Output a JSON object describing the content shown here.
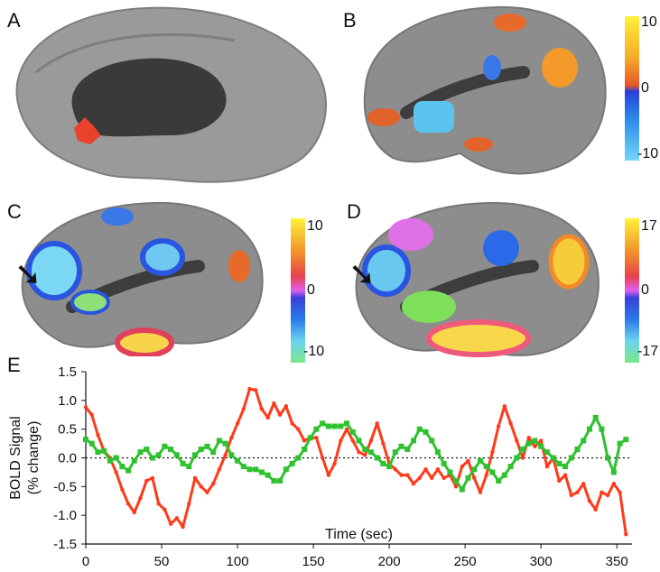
{
  "panels": {
    "a": {
      "label": "A"
    },
    "b": {
      "label": "B",
      "cbar": {
        "max": "10",
        "mid": "0",
        "min": "-10"
      }
    },
    "c": {
      "label": "C",
      "cbar": {
        "max": "10",
        "mid": "0",
        "min": "-10"
      }
    },
    "d": {
      "label": "D",
      "cbar": {
        "max": "17",
        "mid": "0",
        "min": "-17"
      }
    },
    "e": {
      "label": "E"
    }
  },
  "colors": {
    "brain": "#8f8f8f",
    "brain_dark": "#6e6e6e",
    "medial_wall": "#3a3a3a",
    "red_series": "#ff3a1a",
    "green_series": "#2ec22e"
  },
  "chart_data": {
    "type": "line",
    "ylabel": "BOLD Signal\n(% change)",
    "xlabel": "Time (sec)",
    "xlim": [
      0,
      360
    ],
    "ylim": [
      -1.5,
      1.5
    ],
    "xticks": [
      0,
      50,
      100,
      150,
      200,
      250,
      300,
      350
    ],
    "yticks": [
      1.5,
      1.0,
      0.5,
      0.0,
      -0.5,
      -1.0,
      -1.5
    ],
    "ytick_labels": [
      "1.5",
      "1.0",
      "0.5",
      "0.0",
      "-0.5",
      "-1.0",
      "-1.5"
    ],
    "reference_line": 0.0,
    "series": [
      {
        "color": "red",
        "points": [
          [
            0,
            0.88
          ],
          [
            4,
            0.75
          ],
          [
            8,
            0.4
          ],
          [
            12,
            0.12
          ],
          [
            16,
            0.0
          ],
          [
            20,
            -0.25
          ],
          [
            24,
            -0.55
          ],
          [
            28,
            -0.8
          ],
          [
            32,
            -0.95
          ],
          [
            36,
            -0.7
          ],
          [
            40,
            -0.4
          ],
          [
            44,
            -0.35
          ],
          [
            48,
            -0.8
          ],
          [
            52,
            -0.9
          ],
          [
            56,
            -1.15
          ],
          [
            60,
            -1.05
          ],
          [
            64,
            -1.2
          ],
          [
            68,
            -0.8
          ],
          [
            72,
            -0.35
          ],
          [
            76,
            -0.5
          ],
          [
            80,
            -0.6
          ],
          [
            84,
            -0.45
          ],
          [
            88,
            -0.2
          ],
          [
            92,
            0.05
          ],
          [
            96,
            0.35
          ],
          [
            100,
            0.6
          ],
          [
            104,
            0.85
          ],
          [
            108,
            1.2
          ],
          [
            112,
            1.18
          ],
          [
            116,
            0.85
          ],
          [
            120,
            0.7
          ],
          [
            124,
            0.95
          ],
          [
            128,
            0.75
          ],
          [
            132,
            0.9
          ],
          [
            136,
            0.6
          ],
          [
            140,
            0.5
          ],
          [
            144,
            0.3
          ],
          [
            148,
            0.35
          ],
          [
            152,
            0.35
          ],
          [
            156,
            0.0
          ],
          [
            160,
            -0.3
          ],
          [
            164,
            -0.1
          ],
          [
            168,
            0.3
          ],
          [
            172,
            0.5
          ],
          [
            176,
            0.3
          ],
          [
            180,
            0.1
          ],
          [
            184,
            0.05
          ],
          [
            188,
            0.3
          ],
          [
            192,
            0.6
          ],
          [
            196,
            0.25
          ],
          [
            200,
            -0.1
          ],
          [
            204,
            -0.2
          ],
          [
            208,
            -0.3
          ],
          [
            212,
            -0.3
          ],
          [
            216,
            -0.45
          ],
          [
            220,
            -0.35
          ],
          [
            224,
            -0.2
          ],
          [
            228,
            -0.35
          ],
          [
            232,
            -0.2
          ],
          [
            236,
            -0.35
          ],
          [
            240,
            -0.3
          ],
          [
            244,
            -0.5
          ],
          [
            248,
            -0.15
          ],
          [
            252,
            -0.05
          ],
          [
            256,
            -0.35
          ],
          [
            260,
            -0.6
          ],
          [
            264,
            -0.3
          ],
          [
            268,
            0.1
          ],
          [
            272,
            0.55
          ],
          [
            276,
            0.9
          ],
          [
            280,
            0.6
          ],
          [
            284,
            0.3
          ],
          [
            288,
            0.0
          ],
          [
            292,
            0.35
          ],
          [
            296,
            0.2
          ],
          [
            300,
            0.3
          ],
          [
            304,
            -0.15
          ],
          [
            308,
            0.0
          ],
          [
            312,
            -0.4
          ],
          [
            316,
            -0.3
          ],
          [
            320,
            -0.65
          ],
          [
            324,
            -0.6
          ],
          [
            328,
            -0.45
          ],
          [
            332,
            -0.75
          ],
          [
            336,
            -0.9
          ],
          [
            340,
            -0.6
          ],
          [
            344,
            -0.65
          ],
          [
            348,
            -0.45
          ],
          [
            352,
            -0.6
          ],
          [
            356,
            -1.33
          ]
        ]
      },
      {
        "color": "green",
        "points": [
          [
            0,
            0.32
          ],
          [
            4,
            0.25
          ],
          [
            8,
            0.1
          ],
          [
            12,
            0.12
          ],
          [
            16,
            -0.05
          ],
          [
            20,
            0.0
          ],
          [
            24,
            -0.15
          ],
          [
            28,
            -0.22
          ],
          [
            32,
            -0.05
          ],
          [
            36,
            0.1
          ],
          [
            40,
            0.15
          ],
          [
            44,
            0.0
          ],
          [
            48,
            0.05
          ],
          [
            52,
            0.2
          ],
          [
            56,
            0.15
          ],
          [
            60,
            0.05
          ],
          [
            64,
            -0.1
          ],
          [
            68,
            -0.15
          ],
          [
            72,
            0.05
          ],
          [
            76,
            0.15
          ],
          [
            80,
            0.2
          ],
          [
            84,
            0.1
          ],
          [
            88,
            0.3
          ],
          [
            92,
            0.25
          ],
          [
            96,
            0.05
          ],
          [
            100,
            -0.05
          ],
          [
            104,
            -0.15
          ],
          [
            108,
            -0.2
          ],
          [
            112,
            -0.2
          ],
          [
            116,
            -0.25
          ],
          [
            120,
            -0.3
          ],
          [
            124,
            -0.4
          ],
          [
            128,
            -0.4
          ],
          [
            132,
            -0.2
          ],
          [
            136,
            -0.1
          ],
          [
            140,
            0.0
          ],
          [
            144,
            0.15
          ],
          [
            148,
            0.35
          ],
          [
            152,
            0.5
          ],
          [
            156,
            0.6
          ],
          [
            160,
            0.55
          ],
          [
            164,
            0.55
          ],
          [
            168,
            0.55
          ],
          [
            172,
            0.6
          ],
          [
            176,
            0.45
          ],
          [
            180,
            0.3
          ],
          [
            184,
            0.15
          ],
          [
            188,
            0.1
          ],
          [
            192,
            0.0
          ],
          [
            196,
            -0.1
          ],
          [
            200,
            -0.15
          ],
          [
            204,
            0.1
          ],
          [
            208,
            0.2
          ],
          [
            212,
            0.15
          ],
          [
            216,
            0.3
          ],
          [
            220,
            0.5
          ],
          [
            224,
            0.45
          ],
          [
            228,
            0.3
          ],
          [
            232,
            0.1
          ],
          [
            236,
            -0.1
          ],
          [
            240,
            -0.25
          ],
          [
            244,
            -0.4
          ],
          [
            248,
            -0.55
          ],
          [
            252,
            -0.35
          ],
          [
            256,
            -0.2
          ],
          [
            260,
            -0.05
          ],
          [
            264,
            -0.15
          ],
          [
            268,
            -0.25
          ],
          [
            272,
            -0.4
          ],
          [
            276,
            -0.3
          ],
          [
            280,
            -0.15
          ],
          [
            284,
            0.0
          ],
          [
            288,
            0.15
          ],
          [
            292,
            0.25
          ],
          [
            296,
            0.3
          ],
          [
            300,
            0.2
          ],
          [
            304,
            0.1
          ],
          [
            308,
            0.0
          ],
          [
            312,
            -0.1
          ],
          [
            316,
            -0.15
          ],
          [
            320,
            0.0
          ],
          [
            324,
            0.15
          ],
          [
            328,
            0.3
          ],
          [
            332,
            0.5
          ],
          [
            336,
            0.7
          ],
          [
            340,
            0.5
          ],
          [
            344,
            0.0
          ],
          [
            348,
            -0.25
          ],
          [
            352,
            0.25
          ],
          [
            356,
            0.32
          ]
        ]
      }
    ]
  }
}
